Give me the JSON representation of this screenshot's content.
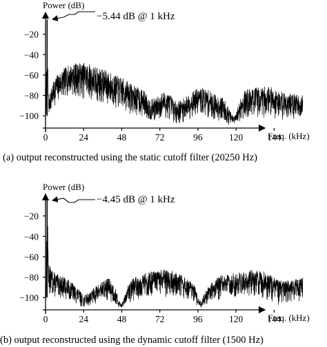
{
  "chart_data": [
    {
      "type": "line",
      "ylabel": "Power (dB)",
      "xlabel": "Freq. (kHz)",
      "caption": "(a) output reconstructed using the static cutoff filter (20250 Hz)",
      "annotation": "−5.44 dB @ 1 kHz",
      "peak": {
        "x": 1,
        "y": -5.44
      },
      "xlim": [
        0,
        166
      ],
      "ylim": [
        -112,
        0
      ],
      "xticks": [
        0,
        24,
        48,
        72,
        96,
        120,
        144
      ],
      "xtick_labels": [
        "0",
        "24",
        "48",
        "72",
        "96",
        "120",
        "144"
      ],
      "yticks": [
        -20,
        -40,
        -60,
        -80,
        -100
      ],
      "ytick_labels": [
        "−20",
        "−40",
        "−60",
        "−80",
        "−100"
      ],
      "noise_profile": {
        "x": [
          0,
          1,
          2,
          3,
          6,
          10,
          15,
          20,
          26,
          32,
          38,
          44,
          50,
          56,
          62,
          66,
          70,
          74,
          78,
          82,
          86,
          90,
          95,
          100,
          104,
          108,
          112,
          116,
          118,
          120,
          123,
          126,
          132,
          140,
          146,
          150,
          156,
          162
        ],
        "upper": [
          -98,
          -5.44,
          -85,
          -75,
          -62,
          -55,
          -50,
          -48,
          -48,
          -52,
          -55,
          -60,
          -64,
          -70,
          -75,
          -84,
          -82,
          -76,
          -78,
          -86,
          -84,
          -78,
          -74,
          -72,
          -76,
          -80,
          -82,
          -94,
          -100,
          -98,
          -80,
          -74,
          -72,
          -70,
          -74,
          -76,
          -78,
          -80
        ],
        "lower": [
          -106,
          -100,
          -100,
          -98,
          -90,
          -85,
          -80,
          -82,
          -84,
          -88,
          -90,
          -94,
          -96,
          -100,
          -102,
          -106,
          -106,
          -104,
          -104,
          -108,
          -108,
          -104,
          -100,
          -102,
          -104,
          -106,
          -106,
          -110,
          -110,
          -110,
          -106,
          -104,
          -102,
          -102,
          -104,
          -104,
          -104,
          -104
        ]
      }
    },
    {
      "type": "line",
      "ylabel": "Power (dB)",
      "xlabel": "Freq. (kHz)",
      "caption": "(b) output reconstructed using the dynamic cutoff filter (1500 Hz)",
      "annotation": "−4.45 dB @ 1 kHz",
      "peak": {
        "x": 1,
        "y": -4.45
      },
      "xlim": [
        0,
        166
      ],
      "ylim": [
        -112,
        0
      ],
      "xticks": [
        0,
        24,
        48,
        72,
        96,
        120,
        144
      ],
      "xtick_labels": [
        "0",
        "24",
        "48",
        "72",
        "96",
        "120",
        "144"
      ],
      "yticks": [
        -20,
        -40,
        -60,
        -80,
        -100
      ],
      "ytick_labels": [
        "−20",
        "−40",
        "−60",
        "−80",
        "−100"
      ],
      "noise_profile": {
        "x": [
          0,
          1,
          2,
          3,
          5,
          8,
          12,
          16,
          20,
          24,
          28,
          32,
          36,
          40,
          44,
          46,
          48,
          50,
          52,
          54,
          58,
          62,
          68,
          74,
          80,
          86,
          90,
          94,
          96,
          98,
          100,
          104,
          110,
          118,
          126,
          132,
          138,
          142,
          146,
          150,
          156,
          162
        ],
        "upper": [
          -100,
          -4.45,
          -65,
          -70,
          -74,
          -78,
          -80,
          -84,
          -90,
          -98,
          -94,
          -88,
          -84,
          -80,
          -90,
          -102,
          -106,
          -98,
          -88,
          -82,
          -78,
          -76,
          -74,
          -72,
          -74,
          -78,
          -82,
          -88,
          -100,
          -104,
          -96,
          -86,
          -78,
          -76,
          -74,
          -72,
          -74,
          -78,
          -82,
          -84,
          -82,
          -80
        ],
        "lower": [
          -108,
          -100,
          -96,
          -98,
          -100,
          -100,
          -102,
          -104,
          -108,
          -110,
          -108,
          -106,
          -104,
          -104,
          -108,
          -110,
          -110,
          -108,
          -106,
          -104,
          -102,
          -100,
          -100,
          -100,
          -100,
          -102,
          -104,
          -108,
          -110,
          -110,
          -108,
          -104,
          -102,
          -100,
          -100,
          -100,
          -102,
          -104,
          -108,
          -106,
          -104,
          -104
        ]
      }
    }
  ]
}
